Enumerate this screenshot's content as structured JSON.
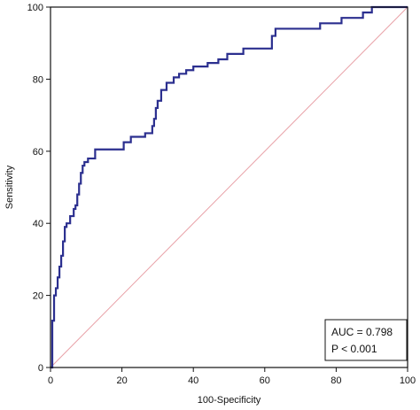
{
  "chart_data": {
    "type": "line",
    "title": "",
    "xlabel": "100-Specificity",
    "ylabel": "Sensitivity",
    "xlim": [
      0,
      100
    ],
    "ylim": [
      0,
      100
    ],
    "xticks": [
      0,
      20,
      40,
      60,
      80,
      100
    ],
    "yticks": [
      0,
      20,
      40,
      60,
      80,
      100
    ],
    "grid": false,
    "series": [
      {
        "kind": "roc",
        "color": "#2b2f8f",
        "x": [
          0,
          0.5,
          0.5,
          1,
          1,
          1.5,
          1.5,
          2,
          2,
          2.5,
          2.5,
          3,
          3,
          3.5,
          3.5,
          4,
          4,
          4.5,
          4.5,
          5.5,
          5.5,
          6.5,
          6.5,
          7,
          7,
          7.5,
          7.5,
          8,
          8,
          8.5,
          8.5,
          9,
          9,
          9.5,
          9.5,
          10.5,
          10.5,
          12.5,
          12.5,
          20.5,
          20.5,
          22.5,
          22.5,
          26.5,
          26.5,
          28.5,
          28.5,
          29,
          29,
          29.5,
          29.5,
          30,
          30,
          31,
          31,
          32.5,
          32.5,
          34.5,
          34.5,
          36,
          36,
          38,
          38,
          40,
          40,
          44,
          44,
          47,
          47,
          49.5,
          49.5,
          54,
          54,
          62,
          62,
          63,
          63,
          75.5,
          75.5,
          81.5,
          81.5,
          87.5,
          87.5,
          90,
          90,
          100
        ],
        "y": [
          0,
          0,
          13,
          13,
          20,
          20,
          22,
          22,
          25,
          25,
          28,
          28,
          31,
          31,
          35,
          35,
          39,
          39,
          40,
          40,
          42,
          42,
          44,
          44,
          45,
          45,
          48,
          48,
          51,
          51,
          54,
          54,
          56,
          56,
          57,
          57,
          58,
          58,
          60.5,
          60.5,
          62.5,
          62.5,
          64,
          64,
          65,
          65,
          67,
          67,
          69,
          69,
          72,
          72,
          74,
          74,
          77,
          77,
          79,
          79,
          80.5,
          80.5,
          81.5,
          81.5,
          82.5,
          82.5,
          83.5,
          83.5,
          84.5,
          84.5,
          85.5,
          85.5,
          87,
          87,
          88.5,
          88.5,
          92,
          92,
          94,
          94,
          95.5,
          95.5,
          97,
          97,
          98.5,
          98.5,
          100,
          100
        ]
      },
      {
        "kind": "reference",
        "color": "#e8a0a6",
        "x": [
          0,
          100
        ],
        "y": [
          0,
          100
        ]
      }
    ],
    "annotations": [
      "AUC = 0.798",
      "P < 0.001"
    ],
    "annotation_placement": "bottom-right"
  }
}
